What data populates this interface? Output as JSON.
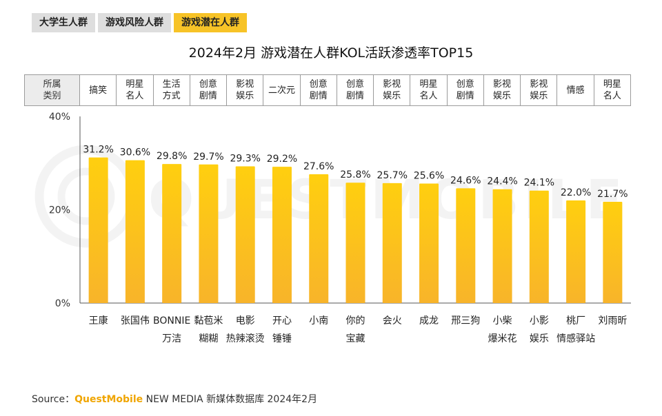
{
  "tabs": [
    {
      "label": "大学生人群",
      "active": false
    },
    {
      "label": "游戏风险人群",
      "active": false
    },
    {
      "label": "游戏潜在人群",
      "active": true
    }
  ],
  "title": "2024年2月 游戏潜在人群KOL活跃渗透率TOP15",
  "category_table": {
    "header": "所属\n类别",
    "cells": [
      "搞笑",
      "明星\n名人",
      "生活\n方式",
      "创意\n剧情",
      "影视\n娱乐",
      "二次元",
      "创意\n剧情",
      "创意\n剧情",
      "影视\n娱乐",
      "明星\n名人",
      "创意\n剧情",
      "影视\n娱乐",
      "影视\n娱乐",
      "情感",
      "明星\n名人"
    ]
  },
  "chart_data": {
    "type": "bar",
    "categories": [
      "王康",
      "张国伟",
      "BONNIE万洁",
      "黏苞米糊糊",
      "电影热辣滚烫",
      "开心锤锤",
      "小南",
      "你的宝藏",
      "会火",
      "成龙",
      "邢三狗",
      "小柴爆米花",
      "小影娱乐",
      "桃厂情感驿站",
      "刘雨昕"
    ],
    "category_display": [
      "王康",
      "张国伟",
      "BONNIE\n万洁",
      "黏苞米\n糊糊",
      "电影\n热辣滚烫",
      "开心\n锤锤",
      "小南",
      "你的\n宝藏",
      "会火",
      "成龙",
      "邢三狗",
      "小柴\n爆米花",
      "小影\n娱乐",
      "桃厂\n情感驿站",
      "刘雨昕"
    ],
    "values": [
      31.2,
      30.6,
      29.8,
      29.7,
      29.3,
      29.2,
      27.6,
      25.8,
      25.7,
      25.6,
      24.6,
      24.4,
      24.1,
      22.0,
      21.7
    ],
    "value_labels": [
      "31.2%",
      "30.6%",
      "29.8%",
      "29.7%",
      "29.3%",
      "29.2%",
      "27.6%",
      "25.8%",
      "25.7%",
      "25.6%",
      "24.6%",
      "24.4%",
      "24.1%",
      "22.0%",
      "21.7%"
    ],
    "ylim": [
      0,
      40
    ],
    "yticks": [
      "0%",
      "20%",
      "40%"
    ],
    "ytick_values": [
      0,
      20,
      40
    ],
    "grid": false,
    "bar_color_top": "#ffcf0f",
    "bar_color_bottom": "#f8b42a"
  },
  "source": {
    "prefix": "Source：",
    "brand": "QuestMobile",
    "rest": " NEW MEDIA 新媒体数据库 2024年2月"
  },
  "watermark": "QUESTMOBILE"
}
